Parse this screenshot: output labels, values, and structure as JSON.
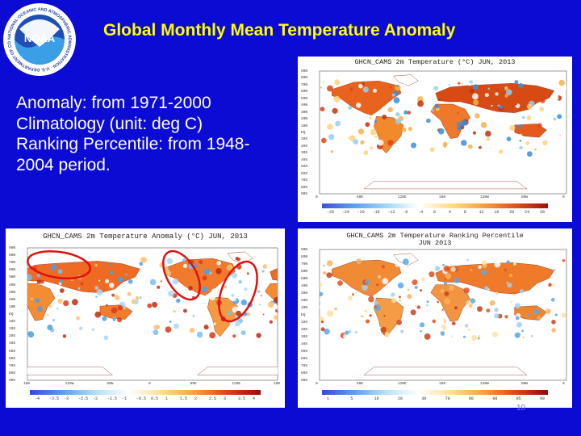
{
  "slide": {
    "title": "Global Monthly Mean Temperature Anomaly",
    "body_lines": [
      "Anomaly: from 1971-2000",
      "Climatology (unit: deg C)",
      "Ranking Percentile: from 1948-",
      "2004 period."
    ],
    "page_number": "10"
  },
  "logo": {
    "name": "NOAA",
    "ring_text": "NATIONAL OCEANIC AND ATMOSPHERIC ADMINISTRATION · U.S. DEPARTMENT OF COMMERCE"
  },
  "colors": {
    "background": "#0b0bd4",
    "title": "#ffff00",
    "text": "#ffffff",
    "circle": "#e01010"
  },
  "maps": [
    {
      "id": "temperature",
      "caption": "GHCN_CAMS 2m Temperature (°C) JUN, 2013",
      "lat_labels": [
        "90N",
        "80N",
        "70N",
        "60N",
        "50N",
        "40N",
        "30N",
        "20N",
        "10N",
        "EQ",
        "10S",
        "20S",
        "30S",
        "40S",
        "50S",
        "60S",
        "70S",
        "80S",
        "90S"
      ],
      "lon_labels": [
        "0",
        "60E",
        "120E",
        "180",
        "120W",
        "60W",
        "0"
      ],
      "colorbar_ticks": [
        "-28",
        "-24",
        "-20",
        "-16",
        "-12",
        "-8",
        "-4",
        "0",
        "4",
        "8",
        "12",
        "16",
        "20",
        "24",
        "28"
      ]
    },
    {
      "id": "anomaly",
      "caption": "GHCN_CAMS 2m Temperature Anomaly (°C) JUN, 2013",
      "lat_labels": [
        "90N",
        "80N",
        "70N",
        "60N",
        "50N",
        "40N",
        "30N",
        "20N",
        "10N",
        "EQ",
        "10S",
        "20S",
        "30S",
        "40S",
        "50S",
        "60S",
        "70S",
        "80S",
        "90S"
      ],
      "lon_labels": [
        "180",
        "120W",
        "60W",
        "0",
        "60E",
        "120E",
        "180"
      ],
      "colorbar_ticks": [
        "-4",
        "-3.5",
        "-3",
        "-2.5",
        "-2",
        "-1.5",
        "-1",
        "-0.5",
        "0.5",
        "1",
        "1.5",
        "2",
        "2.5",
        "3",
        "3.5",
        "4"
      ]
    },
    {
      "id": "ranking",
      "caption_lines": [
        "GHCN_CAMS 2m Temperature Ranking Percentile",
        "JUN 2013"
      ],
      "lat_labels": [
        "90N",
        "80N",
        "70N",
        "60N",
        "50N",
        "40N",
        "30N",
        "20N",
        "10N",
        "EQ",
        "10S",
        "20S",
        "30S",
        "40S",
        "50S",
        "60S",
        "70S",
        "80S",
        "90S"
      ],
      "lon_labels": [
        "0",
        "60E",
        "120E",
        "180",
        "120W",
        "60W",
        "0"
      ],
      "colorbar_ticks": [
        "1",
        "5",
        "10",
        "20",
        "30",
        "70",
        "80",
        "90",
        "95",
        "99"
      ]
    }
  ]
}
